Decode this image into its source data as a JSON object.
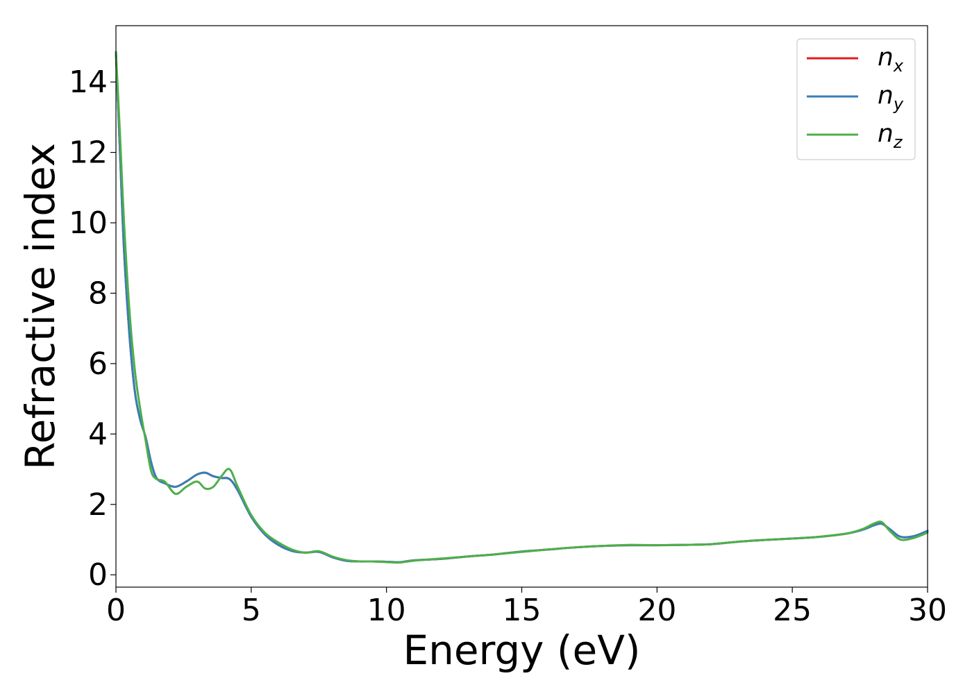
{
  "chart_data": {
    "type": "line",
    "title": "",
    "xlabel": "Energy (eV)",
    "ylabel": "Refractive index",
    "xlim": [
      0,
      30
    ],
    "ylim": [
      -0.35,
      15.6
    ],
    "xticks": [
      0,
      5,
      10,
      15,
      20,
      25,
      30
    ],
    "yticks": [
      0,
      2,
      4,
      6,
      8,
      10,
      12,
      14
    ],
    "grid": false,
    "legend_position": "top-right",
    "series": [
      {
        "name": "n_x",
        "legend_base": "n",
        "legend_sub": "x",
        "color": "#e41a1c",
        "x": [
          0,
          0.15,
          0.3,
          0.5,
          0.7,
          0.9,
          1.1,
          1.3,
          1.5,
          1.8,
          2.2,
          2.6,
          3.0,
          3.3,
          3.6,
          3.9,
          4.2,
          4.5,
          5.0,
          5.5,
          6.0,
          6.5,
          7.0,
          7.5,
          8.0,
          8.5,
          9.0,
          9.5,
          10.0,
          10.5,
          11.0,
          12.0,
          13.0,
          14.0,
          15.0,
          16.0,
          17.0,
          18.0,
          19.0,
          20.0,
          21.0,
          22.0,
          23.0,
          24.0,
          25.0,
          26.0,
          27.0,
          27.6,
          28.0,
          28.3,
          28.6,
          29.0,
          29.5,
          30.0
        ],
        "y": [
          14.85,
          12.0,
          9.2,
          6.8,
          5.2,
          4.4,
          3.9,
          3.2,
          2.75,
          2.6,
          2.5,
          2.65,
          2.85,
          2.9,
          2.8,
          2.75,
          2.72,
          2.4,
          1.65,
          1.15,
          0.85,
          0.68,
          0.63,
          0.65,
          0.5,
          0.4,
          0.38,
          0.38,
          0.37,
          0.36,
          0.41,
          0.45,
          0.52,
          0.58,
          0.66,
          0.72,
          0.78,
          0.82,
          0.84,
          0.84,
          0.85,
          0.87,
          0.94,
          0.99,
          1.03,
          1.08,
          1.17,
          1.28,
          1.4,
          1.45,
          1.3,
          1.08,
          1.1,
          1.25
        ]
      },
      {
        "name": "n_y",
        "legend_base": "n",
        "legend_sub": "y",
        "color": "#377eb8",
        "x": [
          0,
          0.15,
          0.3,
          0.5,
          0.7,
          0.9,
          1.1,
          1.3,
          1.5,
          1.8,
          2.2,
          2.6,
          3.0,
          3.3,
          3.6,
          3.9,
          4.2,
          4.5,
          5.0,
          5.5,
          6.0,
          6.5,
          7.0,
          7.5,
          8.0,
          8.5,
          9.0,
          9.5,
          10.0,
          10.5,
          11.0,
          12.0,
          13.0,
          14.0,
          15.0,
          16.0,
          17.0,
          18.0,
          19.0,
          20.0,
          21.0,
          22.0,
          23.0,
          24.0,
          25.0,
          26.0,
          27.0,
          27.6,
          28.0,
          28.3,
          28.6,
          29.0,
          29.5,
          30.0
        ],
        "y": [
          14.85,
          12.0,
          9.2,
          6.8,
          5.2,
          4.4,
          3.9,
          3.2,
          2.75,
          2.6,
          2.5,
          2.65,
          2.85,
          2.9,
          2.8,
          2.75,
          2.72,
          2.4,
          1.65,
          1.15,
          0.85,
          0.68,
          0.63,
          0.65,
          0.5,
          0.4,
          0.38,
          0.38,
          0.37,
          0.36,
          0.41,
          0.45,
          0.52,
          0.58,
          0.66,
          0.72,
          0.78,
          0.82,
          0.84,
          0.84,
          0.85,
          0.87,
          0.94,
          0.99,
          1.03,
          1.08,
          1.17,
          1.28,
          1.4,
          1.45,
          1.3,
          1.08,
          1.1,
          1.25
        ]
      },
      {
        "name": "n_z",
        "legend_base": "n",
        "legend_sub": "z",
        "color": "#4daf4a",
        "x": [
          0,
          0.15,
          0.3,
          0.5,
          0.7,
          0.9,
          1.1,
          1.3,
          1.5,
          1.8,
          2.2,
          2.6,
          3.0,
          3.3,
          3.6,
          3.9,
          4.2,
          4.5,
          5.0,
          5.5,
          6.0,
          6.5,
          7.0,
          7.5,
          8.0,
          8.5,
          9.0,
          9.5,
          10.0,
          10.5,
          11.0,
          12.0,
          13.0,
          14.0,
          15.0,
          16.0,
          17.0,
          18.0,
          19.0,
          20.0,
          21.0,
          22.0,
          23.0,
          24.0,
          25.0,
          26.0,
          27.0,
          27.6,
          28.0,
          28.3,
          28.6,
          29.0,
          29.5,
          30.0
        ],
        "y": [
          14.85,
          12.5,
          10.0,
          7.5,
          5.8,
          4.7,
          3.8,
          2.95,
          2.72,
          2.65,
          2.3,
          2.5,
          2.65,
          2.45,
          2.5,
          2.8,
          3.0,
          2.5,
          1.7,
          1.2,
          0.92,
          0.72,
          0.63,
          0.67,
          0.52,
          0.42,
          0.38,
          0.38,
          0.36,
          0.35,
          0.4,
          0.46,
          0.52,
          0.58,
          0.65,
          0.72,
          0.78,
          0.82,
          0.85,
          0.84,
          0.85,
          0.87,
          0.94,
          0.99,
          1.03,
          1.08,
          1.17,
          1.3,
          1.45,
          1.5,
          1.25,
          1.0,
          1.05,
          1.2
        ]
      }
    ]
  }
}
